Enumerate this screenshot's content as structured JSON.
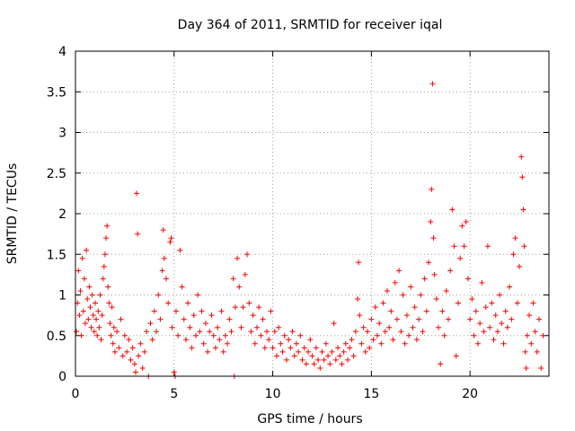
{
  "chart_data": {
    "type": "scatter",
    "title": "Day 364 of 2011, SRMTID for receiver iqal",
    "xlabel": "GPS time / hours",
    "ylabel": "SRMTID / TECUs",
    "xlim": [
      0,
      24
    ],
    "ylim": [
      0,
      4
    ],
    "x_ticks": [
      0,
      5,
      10,
      15,
      20
    ],
    "x_tick_labels": [
      "0",
      "5",
      "10",
      "15",
      "20"
    ],
    "y_ticks": [
      0,
      0.5,
      1,
      1.5,
      2,
      2.5,
      3,
      3.5,
      4
    ],
    "y_tick_labels": [
      "0",
      "0.5",
      "1",
      "1.5",
      "2",
      "2.5",
      "3",
      "3.5",
      "4"
    ],
    "grid": true,
    "marker": "+",
    "color": "#ff0000",
    "series": [
      {
        "name": "SRMTID",
        "note": "dense scatter; representative points estimated from the plot",
        "points": [
          [
            0.05,
            0.55
          ],
          [
            0.1,
            0.9
          ],
          [
            0.15,
            1.3
          ],
          [
            0.2,
            0.75
          ],
          [
            0.25,
            1.05
          ],
          [
            0.3,
            0.5
          ],
          [
            0.35,
            1.45
          ],
          [
            0.4,
            0.8
          ],
          [
            0.45,
            1.2
          ],
          [
            0.5,
            0.65
          ],
          [
            0.55,
            1.55
          ],
          [
            0.6,
            0.95
          ],
          [
            0.65,
            0.7
          ],
          [
            0.7,
            1.1
          ],
          [
            0.75,
            0.85
          ],
          [
            0.8,
            0.6
          ],
          [
            0.85,
            1.0
          ],
          [
            0.9,
            0.75
          ],
          [
            0.95,
            0.55
          ],
          [
            1.0,
            0.9
          ],
          [
            1.05,
            0.7
          ],
          [
            1.1,
            0.5
          ],
          [
            1.15,
            0.8
          ],
          [
            1.2,
            0.6
          ],
          [
            1.25,
            1.0
          ],
          [
            1.3,
            0.45
          ],
          [
            1.35,
            0.75
          ],
          [
            1.4,
            1.2
          ],
          [
            1.45,
            1.35
          ],
          [
            1.5,
            1.5
          ],
          [
            1.55,
            1.7
          ],
          [
            1.6,
            1.85
          ],
          [
            1.65,
            1.1
          ],
          [
            1.7,
            0.9
          ],
          [
            1.75,
            0.65
          ],
          [
            1.8,
            0.5
          ],
          [
            1.85,
            0.85
          ],
          [
            1.9,
            0.4
          ],
          [
            1.95,
            0.6
          ],
          [
            2.0,
            0.3
          ],
          [
            2.1,
            0.55
          ],
          [
            2.2,
            0.35
          ],
          [
            2.3,
            0.7
          ],
          [
            2.4,
            0.25
          ],
          [
            2.5,
            0.5
          ],
          [
            2.6,
            0.3
          ],
          [
            2.7,
            0.45
          ],
          [
            2.8,
            0.2
          ],
          [
            2.9,
            0.35
          ],
          [
            3.0,
            0.15
          ],
          [
            3.05,
            0.05
          ],
          [
            3.1,
            2.25
          ],
          [
            3.15,
            1.75
          ],
          [
            3.2,
            0.25
          ],
          [
            3.3,
            0.4
          ],
          [
            3.4,
            0.1
          ],
          [
            3.5,
            0.3
          ],
          [
            3.6,
            0.55
          ],
          [
            3.7,
            0.0
          ],
          [
            3.8,
            0.65
          ],
          [
            3.9,
            0.45
          ],
          [
            4.0,
            0.8
          ],
          [
            4.1,
            0.55
          ],
          [
            4.2,
            1.0
          ],
          [
            4.3,
            0.7
          ],
          [
            4.4,
            1.3
          ],
          [
            4.45,
            1.8
          ],
          [
            4.5,
            1.45
          ],
          [
            4.6,
            1.2
          ],
          [
            4.7,
            0.9
          ],
          [
            4.8,
            1.65
          ],
          [
            4.85,
            1.7
          ],
          [
            4.9,
            0.6
          ],
          [
            5.0,
            0.05
          ],
          [
            5.05,
            0.0
          ],
          [
            5.1,
            0.8
          ],
          [
            5.2,
            0.5
          ],
          [
            5.3,
            1.55
          ],
          [
            5.4,
            1.1
          ],
          [
            5.5,
            0.7
          ],
          [
            5.6,
            0.45
          ],
          [
            5.7,
            0.9
          ],
          [
            5.8,
            0.6
          ],
          [
            5.9,
            0.35
          ],
          [
            6.0,
            0.75
          ],
          [
            6.1,
            0.5
          ],
          [
            6.2,
            1.0
          ],
          [
            6.3,
            0.55
          ],
          [
            6.4,
            0.8
          ],
          [
            6.5,
            0.4
          ],
          [
            6.6,
            0.65
          ],
          [
            6.7,
            0.3
          ],
          [
            6.8,
            0.55
          ],
          [
            6.9,
            0.75
          ],
          [
            7.0,
            0.5
          ],
          [
            7.1,
            0.35
          ],
          [
            7.2,
            0.6
          ],
          [
            7.3,
            0.45
          ],
          [
            7.4,
            0.8
          ],
          [
            7.5,
            0.3
          ],
          [
            7.6,
            0.5
          ],
          [
            7.7,
            0.4
          ],
          [
            7.8,
            0.7
          ],
          [
            7.9,
            0.55
          ],
          [
            8.0,
            1.2
          ],
          [
            8.05,
            0.0
          ],
          [
            8.1,
            0.85
          ],
          [
            8.2,
            1.45
          ],
          [
            8.3,
            1.1
          ],
          [
            8.4,
            0.6
          ],
          [
            8.5,
            0.85
          ],
          [
            8.6,
            1.25
          ],
          [
            8.7,
            1.5
          ],
          [
            8.8,
            0.9
          ],
          [
            8.9,
            0.55
          ],
          [
            9.0,
            0.75
          ],
          [
            9.1,
            0.4
          ],
          [
            9.2,
            0.6
          ],
          [
            9.3,
            0.85
          ],
          [
            9.4,
            0.5
          ],
          [
            9.5,
            0.7
          ],
          [
            9.6,
            0.35
          ],
          [
            9.7,
            0.55
          ],
          [
            9.8,
            0.45
          ],
          [
            9.9,
            0.8
          ],
          [
            10.0,
            0.35
          ],
          [
            10.1,
            0.55
          ],
          [
            10.2,
            0.25
          ],
          [
            10.3,
            0.6
          ],
          [
            10.4,
            0.4
          ],
          [
            10.5,
            0.3
          ],
          [
            10.6,
            0.5
          ],
          [
            10.7,
            0.2
          ],
          [
            10.8,
            0.45
          ],
          [
            10.9,
            0.35
          ],
          [
            11.0,
            0.55
          ],
          [
            11.1,
            0.25
          ],
          [
            11.2,
            0.4
          ],
          [
            11.3,
            0.3
          ],
          [
            11.4,
            0.5
          ],
          [
            11.5,
            0.2
          ],
          [
            11.6,
            0.35
          ],
          [
            11.7,
            0.15
          ],
          [
            11.8,
            0.3
          ],
          [
            11.9,
            0.45
          ],
          [
            12.0,
            0.25
          ],
          [
            12.1,
            0.15
          ],
          [
            12.2,
            0.35
          ],
          [
            12.3,
            0.2
          ],
          [
            12.4,
            0.1
          ],
          [
            12.5,
            0.3
          ],
          [
            12.6,
            0.2
          ],
          [
            12.7,
            0.4
          ],
          [
            12.8,
            0.25
          ],
          [
            12.9,
            0.15
          ],
          [
            13.0,
            0.3
          ],
          [
            13.1,
            0.65
          ],
          [
            13.2,
            0.2
          ],
          [
            13.3,
            0.35
          ],
          [
            13.4,
            0.25
          ],
          [
            13.5,
            0.15
          ],
          [
            13.6,
            0.3
          ],
          [
            13.7,
            0.4
          ],
          [
            13.8,
            0.2
          ],
          [
            13.9,
            0.35
          ],
          [
            14.0,
            0.45
          ],
          [
            14.1,
            0.25
          ],
          [
            14.2,
            0.55
          ],
          [
            14.3,
            0.95
          ],
          [
            14.35,
            1.4
          ],
          [
            14.4,
            0.75
          ],
          [
            14.5,
            0.4
          ],
          [
            14.6,
            0.6
          ],
          [
            14.7,
            0.3
          ],
          [
            14.8,
            0.55
          ],
          [
            14.9,
            0.35
          ],
          [
            15.0,
            0.7
          ],
          [
            15.1,
            0.45
          ],
          [
            15.2,
            0.85
          ],
          [
            15.3,
            0.5
          ],
          [
            15.4,
            0.65
          ],
          [
            15.5,
            0.4
          ],
          [
            15.6,
            0.9
          ],
          [
            15.7,
            0.55
          ],
          [
            15.8,
            1.05
          ],
          [
            15.9,
            0.6
          ],
          [
            16.0,
            0.8
          ],
          [
            16.1,
            0.45
          ],
          [
            16.2,
            1.15
          ],
          [
            16.3,
            0.7
          ],
          [
            16.4,
            1.3
          ],
          [
            16.5,
            0.55
          ],
          [
            16.6,
            1.0
          ],
          [
            16.7,
            0.4
          ],
          [
            16.8,
            0.75
          ],
          [
            16.9,
            0.5
          ],
          [
            17.0,
            1.1
          ],
          [
            17.1,
            0.6
          ],
          [
            17.2,
            0.85
          ],
          [
            17.3,
            0.45
          ],
          [
            17.4,
            0.7
          ],
          [
            17.5,
            1.0
          ],
          [
            17.6,
            0.55
          ],
          [
            17.7,
            1.2
          ],
          [
            17.8,
            0.8
          ],
          [
            17.9,
            1.4
          ],
          [
            18.0,
            1.9
          ],
          [
            18.05,
            2.3
          ],
          [
            18.1,
            3.6
          ],
          [
            18.15,
            1.7
          ],
          [
            18.2,
            1.25
          ],
          [
            18.3,
            0.95
          ],
          [
            18.4,
            0.6
          ],
          [
            18.5,
            0.15
          ],
          [
            18.6,
            0.8
          ],
          [
            18.7,
            0.5
          ],
          [
            18.8,
            1.05
          ],
          [
            18.9,
            0.7
          ],
          [
            19.0,
            1.3
          ],
          [
            19.1,
            2.05
          ],
          [
            19.2,
            1.6
          ],
          [
            19.3,
            0.25
          ],
          [
            19.4,
            0.9
          ],
          [
            19.5,
            1.45
          ],
          [
            19.6,
            1.85
          ],
          [
            19.7,
            1.6
          ],
          [
            19.8,
            1.9
          ],
          [
            19.9,
            1.2
          ],
          [
            20.0,
            0.7
          ],
          [
            20.1,
            0.95
          ],
          [
            20.2,
            0.5
          ],
          [
            20.3,
            0.8
          ],
          [
            20.4,
            0.4
          ],
          [
            20.5,
            0.65
          ],
          [
            20.6,
            1.15
          ],
          [
            20.7,
            0.55
          ],
          [
            20.8,
            0.85
          ],
          [
            20.9,
            1.6
          ],
          [
            21.0,
            0.6
          ],
          [
            21.1,
            0.9
          ],
          [
            21.2,
            0.45
          ],
          [
            21.3,
            0.75
          ],
          [
            21.4,
            0.55
          ],
          [
            21.5,
            1.0
          ],
          [
            21.6,
            0.65
          ],
          [
            21.7,
            0.4
          ],
          [
            21.8,
            0.8
          ],
          [
            21.9,
            0.6
          ],
          [
            22.0,
            1.1
          ],
          [
            22.1,
            0.7
          ],
          [
            22.2,
            1.5
          ],
          [
            22.3,
            1.7
          ],
          [
            22.4,
            0.9
          ],
          [
            22.5,
            1.35
          ],
          [
            22.6,
            2.7
          ],
          [
            22.65,
            2.45
          ],
          [
            22.7,
            2.05
          ],
          [
            22.75,
            1.6
          ],
          [
            22.8,
            0.3
          ],
          [
            22.85,
            0.1
          ],
          [
            22.9,
            0.5
          ],
          [
            23.0,
            0.75
          ],
          [
            23.1,
            0.4
          ],
          [
            23.2,
            0.9
          ],
          [
            23.3,
            0.55
          ],
          [
            23.4,
            0.3
          ],
          [
            23.5,
            0.7
          ],
          [
            23.6,
            0.1
          ],
          [
            23.7,
            0.5
          ]
        ]
      }
    ]
  }
}
